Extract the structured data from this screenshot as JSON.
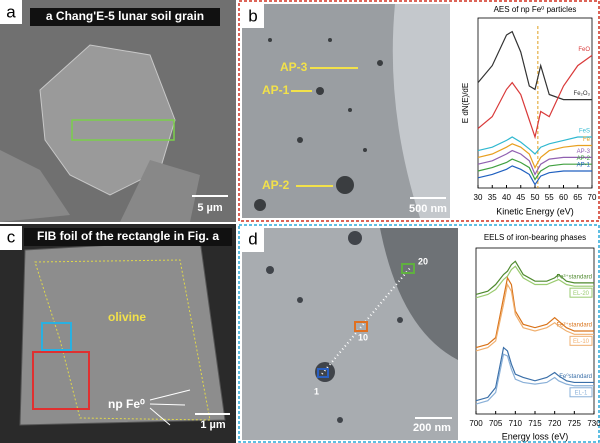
{
  "panels": {
    "a": {
      "letter": "a",
      "caption": "a Chang'E-5 lunar soil grain",
      "scale": "5 µm"
    },
    "b": {
      "letter": "b",
      "labels": [
        "AP-3",
        "AP-1",
        "AP-2"
      ],
      "scale": "500 nm"
    },
    "c": {
      "letter": "c",
      "caption": "FIB foil of the rectangle  in Fig. a",
      "phase": "olivine",
      "particles": "np Fe⁰",
      "scale": "1 µm"
    },
    "d": {
      "letter": "d",
      "points": [
        "20",
        "10",
        "1"
      ],
      "scale": "200 nm"
    }
  },
  "chart_data": [
    {
      "type": "line",
      "title": "AES of np Fe⁰ particles",
      "ylabel": "E dN(E)/dE",
      "xlabel": "Kinetic Energy (eV)",
      "x": [
        30,
        35,
        40,
        42,
        45,
        48,
        50,
        52,
        55,
        60,
        65,
        70
      ],
      "xlim": [
        30,
        70
      ],
      "xticks": [
        30,
        35,
        40,
        45,
        50,
        55,
        60,
        65,
        70
      ],
      "ylim": [
        0,
        100
      ],
      "reference_x": 51,
      "reference_color": "#e0a020",
      "series": [
        {
          "name": "Fe₂O₃",
          "color": "#333333",
          "values": [
            62,
            72,
            90,
            92,
            80,
            60,
            58,
            72,
            55,
            52,
            52,
            52
          ]
        },
        {
          "name": "FeO",
          "color": "#d93a3a",
          "values": [
            35,
            42,
            58,
            62,
            55,
            40,
            30,
            45,
            42,
            60,
            72,
            78
          ]
        },
        {
          "name": "FeS",
          "color": "#30b8d0",
          "values": [
            22,
            24,
            28,
            30,
            27,
            23,
            20,
            24,
            26,
            28,
            30,
            30
          ]
        },
        {
          "name": "Fe",
          "color": "#e8a020",
          "values": [
            18,
            20,
            24,
            26,
            24,
            20,
            12,
            18,
            22,
            24,
            25,
            25
          ]
        },
        {
          "name": "AP-3",
          "color": "#9060b0",
          "values": [
            14,
            16,
            20,
            22,
            20,
            16,
            8,
            14,
            17,
            18,
            18,
            18
          ]
        },
        {
          "name": "AP-2",
          "color": "#40a040",
          "values": [
            10,
            12,
            15,
            17,
            15,
            12,
            5,
            10,
            13,
            14,
            14,
            14
          ]
        },
        {
          "name": "AP-1",
          "color": "#2060c0",
          "values": [
            6,
            8,
            11,
            13,
            11,
            8,
            2,
            7,
            9,
            10,
            10,
            10
          ]
        }
      ]
    },
    {
      "type": "line",
      "title": "EELS of iron-bearing phases",
      "xlabel": "Energy loss (eV)",
      "x": [
        700,
        703,
        705,
        707,
        708,
        709,
        710,
        712,
        715,
        718,
        720,
        721,
        723,
        725,
        730
      ],
      "xlim": [
        700,
        730
      ],
      "xticks": [
        700,
        705,
        710,
        715,
        720,
        725,
        730
      ],
      "ylim": [
        0,
        100
      ],
      "series": [
        {
          "name": "Fe³⁺standard",
          "color": "#4f8a2f",
          "values": [
            72,
            74,
            78,
            84,
            86,
            90,
            92,
            84,
            80,
            80,
            82,
            84,
            80,
            79,
            79
          ]
        },
        {
          "name": "EL-20",
          "color": "#9acb70",
          "values": [
            70,
            72,
            75,
            81,
            83,
            87,
            89,
            82,
            78,
            78,
            80,
            81,
            78,
            77,
            77
          ]
        },
        {
          "name": "Fe²⁺standard",
          "color": "#d9731a",
          "values": [
            40,
            42,
            46,
            70,
            82,
            78,
            62,
            54,
            52,
            54,
            58,
            56,
            52,
            50,
            50
          ]
        },
        {
          "name": "EL-10",
          "color": "#f0b070",
          "values": [
            38,
            40,
            44,
            66,
            78,
            74,
            60,
            52,
            50,
            52,
            55,
            53,
            50,
            48,
            48
          ]
        },
        {
          "name": "Fe⁰standard",
          "color": "#3a6fa8",
          "values": [
            8,
            10,
            16,
            40,
            38,
            30,
            24,
            22,
            20,
            22,
            25,
            23,
            20,
            19,
            19
          ]
        },
        {
          "name": "EL-1",
          "color": "#8ab0d8",
          "values": [
            6,
            8,
            13,
            36,
            35,
            27,
            21,
            19,
            18,
            19,
            22,
            20,
            18,
            17,
            17
          ]
        }
      ]
    }
  ]
}
